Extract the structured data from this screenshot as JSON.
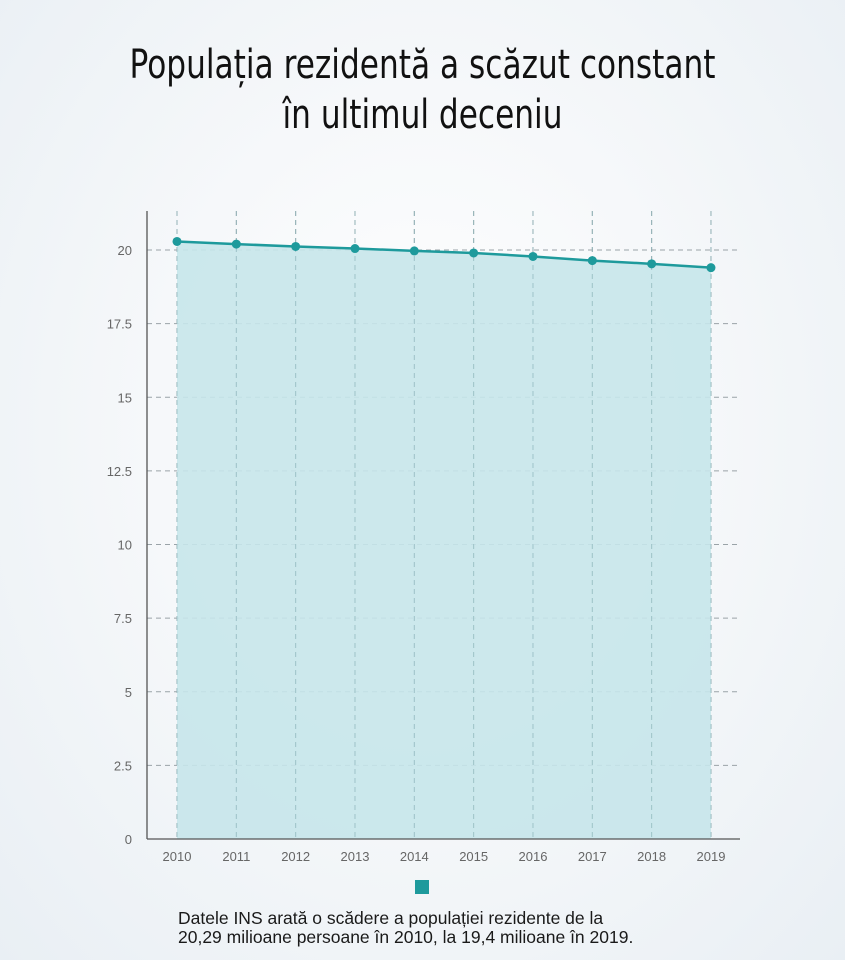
{
  "title": {
    "line1": "Populația rezidentă a scăzut constant",
    "line2": "în ultimul deceniu"
  },
  "caption": {
    "line1": "Datele INS arată o scădere a populației rezidente de la",
    "line2": "20,29 milioane persoane în 2010, la 19,4 milioane în 2019."
  },
  "colors": {
    "line": "#1e9a9c",
    "area": "#c7e6ea",
    "grid": "#9aa3a8",
    "axis": "#555555",
    "tick_label": "#666666"
  },
  "chart_data": {
    "type": "area",
    "title": "Populația rezidentă a scăzut constant în ultimul deceniu",
    "xlabel": "",
    "ylabel": "",
    "categories": [
      "2010",
      "2011",
      "2012",
      "2013",
      "2014",
      "2015",
      "2016",
      "2017",
      "2018",
      "2019"
    ],
    "series": [
      {
        "name": "",
        "values": [
          20.29,
          20.2,
          20.12,
          20.05,
          19.97,
          19.9,
          19.78,
          19.64,
          19.53,
          19.4
        ]
      }
    ],
    "y_ticks": [
      "0",
      "2.5",
      "5",
      "7.5",
      "10",
      "12.5",
      "15",
      "17.5",
      "20"
    ],
    "y_tick_values": [
      0,
      2.5,
      5,
      7.5,
      10,
      12.5,
      15,
      17.5,
      20
    ],
    "ylim": [
      0,
      21.3
    ],
    "grid": true,
    "grid_style": "dashed",
    "legend_position": "bottom",
    "legend": [
      ""
    ],
    "markers": true
  }
}
